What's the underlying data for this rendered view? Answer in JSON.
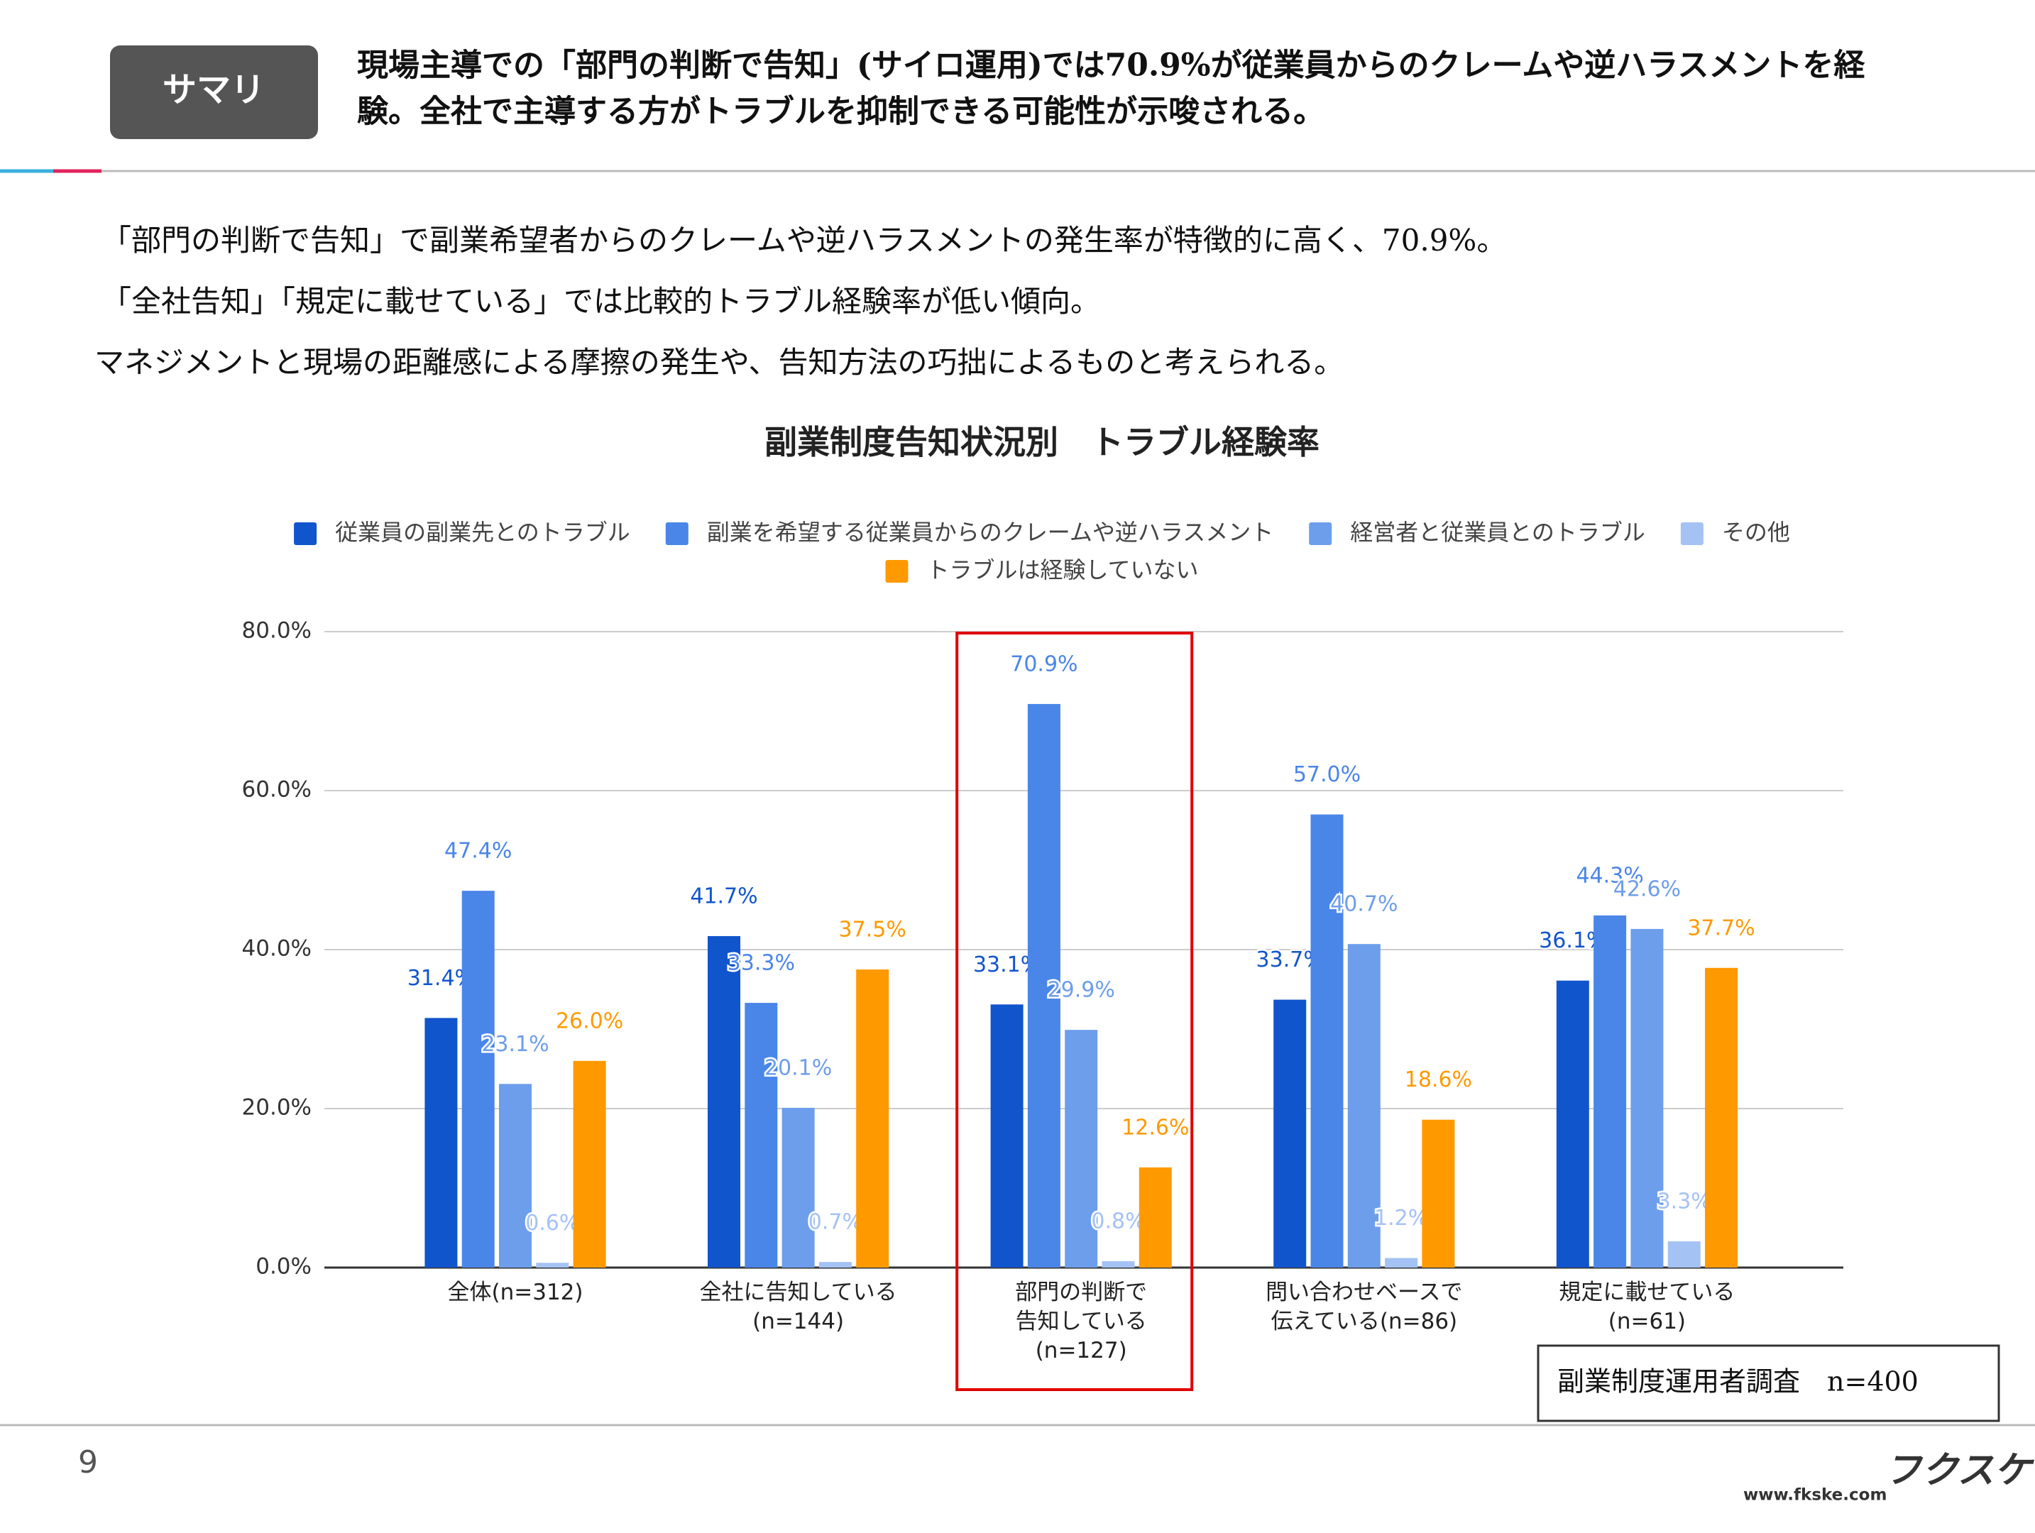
{
  "header": {
    "badge": "サマリ",
    "lines": [
      "現場主導での「部門の判断で告知」(サイロ運用)では70.9%が従業員からのクレームや逆ハラスメントを経",
      "験。全社で主導する方がトラブルを抑制できる可能性が示唆される。"
    ]
  },
  "body": [
    "「部門の判断で告知」で副業希望者からのクレームや逆ハラスメントの発生率が特徴的に高く、70.9%。",
    "「全社告知」「規定に載せている」では比較的トラブル経験率が低い傾向。",
    "マネジメントと現場の距離感による摩擦の発生や、告知方法の巧拙によるものと考えられる。"
  ],
  "chart_data": {
    "type": "bar",
    "title": "副業制度告知状況別　トラブル経験率",
    "categories": [
      "全体(n=312)",
      "全社に告知している\n(n=144)",
      "部門の判断で\n告知している\n(n=127)",
      "問い合わせベースで\n伝えている(n=86)",
      "規定に載せている\n(n=61)"
    ],
    "series": [
      {
        "name": "従業員の副業先とのトラブル",
        "color": "#1155cc",
        "values": [
          31.4,
          41.7,
          33.1,
          33.7,
          36.1
        ],
        "value_labels": [
          "31.4%",
          "41.7%",
          "33.1%",
          "33.7%",
          "36.1%"
        ]
      },
      {
        "name": "副業を希望する従業員からのクレームや逆ハラスメント",
        "color": "#4a86e8",
        "values": [
          47.4,
          33.3,
          70.9,
          57.0,
          44.3
        ],
        "value_labels": [
          "47.4%",
          "33.3%",
          "70.9%",
          "57.0%",
          "44.3%"
        ]
      },
      {
        "name": "経営者と従業員とのトラブル",
        "color": "#6d9eeb",
        "values": [
          23.1,
          20.1,
          29.9,
          40.7,
          42.6
        ],
        "value_labels": [
          "23.1%",
          "20.1%",
          "29.9%",
          "40.7%",
          "42.6%"
        ]
      },
      {
        "name": "その他",
        "color": "#a4c2f4",
        "values": [
          0.6,
          0.7,
          0.8,
          1.2,
          3.3
        ],
        "value_labels": [
          "0.6%",
          "0.7%",
          "0.8%",
          "1.2%",
          "3.3%"
        ]
      },
      {
        "name": "トラブルは経験していない",
        "color": "#ff9900",
        "values": [
          26.0,
          37.5,
          12.6,
          18.6,
          37.7
        ],
        "value_labels": [
          "26.0%",
          "37.5%",
          "12.6%",
          "18.6%",
          "37.7%"
        ]
      }
    ],
    "ylim": [
      0,
      80
    ],
    "yticks": [
      {
        "value": 0,
        "label": "0.0%"
      },
      {
        "value": 20,
        "label": "20.0%"
      },
      {
        "value": 40,
        "label": "40.0%"
      },
      {
        "value": 60,
        "label": "60.0%"
      },
      {
        "value": 80,
        "label": "80.0%"
      }
    ],
    "grid": true,
    "legend": "top"
  },
  "note": "副業制度運用者調査　n=400",
  "page_number": "9",
  "footer": {
    "logo": "フクスケ",
    "url": "www.fkske.com"
  }
}
